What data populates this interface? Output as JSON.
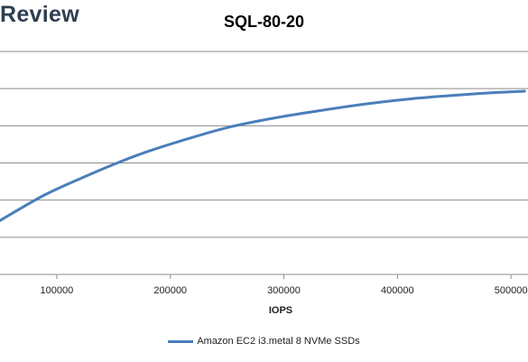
{
  "brand": {
    "name": "Review"
  },
  "chart_data": {
    "type": "line",
    "title": "SQL-80-20",
    "xlabel": "IOPS",
    "ylabel": "",
    "xlim": [
      50000,
      515000
    ],
    "ylim": [
      0,
      6
    ],
    "grid": true,
    "legend": "bottom",
    "x_ticks": [
      100000,
      200000,
      300000,
      400000,
      500000
    ],
    "y_ticks": [
      0,
      1,
      2,
      3,
      4,
      5,
      6
    ],
    "series": [
      {
        "name": "Amazon EC2 i3.metal 8 NVMe SSDs",
        "color": "#4a7ebb",
        "x": [
          50000,
          90000,
          130000,
          170000,
          210000,
          250000,
          290000,
          330000,
          370000,
          410000,
          450000,
          490000,
          512000
        ],
        "y": [
          1.45,
          2.15,
          2.7,
          3.2,
          3.6,
          3.95,
          4.2,
          4.4,
          4.58,
          4.72,
          4.82,
          4.9,
          4.93
        ]
      }
    ]
  }
}
